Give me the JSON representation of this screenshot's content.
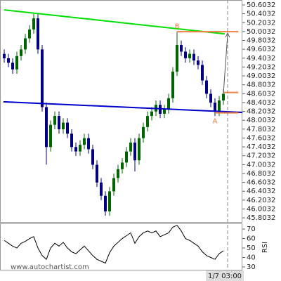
{
  "chart_data": {
    "type": "candlestick",
    "up_color": "#006400",
    "down_color": "#000080",
    "open": [
      49.5,
      49.4,
      49.3,
      49.15,
      49.45,
      49.6,
      49.85,
      50.05,
      50.3,
      49.6,
      48.3,
      47.4,
      47.9,
      48.1,
      47.8,
      47.95,
      47.7,
      47.4,
      47.3,
      47.45,
      47.6,
      47.35,
      47.0,
      46.6,
      46.3,
      45.95,
      46.4,
      46.7,
      46.9,
      47.05,
      47.3,
      47.5,
      47.1,
      47.6,
      47.85,
      48.1,
      48.2,
      48.35,
      48.15,
      48.25,
      48.5,
      49.1,
      49.7,
      49.55,
      49.4,
      49.5,
      49.35,
      49.25,
      48.9,
      48.6,
      48.4,
      48.2,
      48.45
    ],
    "high": [
      49.6,
      49.5,
      49.4,
      49.55,
      49.7,
      49.95,
      50.15,
      50.4,
      50.4,
      49.7,
      48.4,
      48.0,
      48.2,
      48.2,
      48.05,
      48.05,
      47.8,
      47.5,
      47.55,
      47.7,
      47.7,
      47.45,
      47.1,
      46.7,
      46.4,
      46.5,
      46.8,
      47.0,
      47.15,
      47.4,
      47.6,
      47.6,
      47.7,
      47.95,
      48.2,
      48.3,
      48.45,
      48.45,
      48.35,
      48.6,
      49.2,
      50.0,
      49.8,
      49.65,
      49.6,
      49.6,
      49.45,
      49.35,
      49.0,
      48.7,
      48.5,
      48.55,
      48.7
    ],
    "low": [
      49.3,
      49.2,
      49.05,
      49.05,
      49.35,
      49.5,
      49.75,
      49.95,
      49.5,
      48.2,
      47.0,
      47.3,
      47.8,
      47.7,
      47.7,
      47.6,
      47.3,
      47.2,
      47.2,
      47.35,
      47.25,
      46.9,
      46.5,
      46.2,
      45.85,
      45.85,
      46.3,
      46.6,
      46.8,
      46.95,
      47.2,
      46.85,
      47.0,
      47.5,
      47.75,
      48.0,
      48.1,
      48.05,
      48.05,
      48.15,
      48.4,
      49.0,
      49.45,
      49.3,
      49.3,
      49.25,
      49.15,
      48.8,
      48.5,
      48.3,
      48.1,
      48.1,
      48.35
    ],
    "close": [
      49.4,
      49.3,
      49.15,
      49.45,
      49.6,
      49.85,
      50.05,
      50.3,
      49.6,
      48.3,
      47.4,
      47.9,
      48.1,
      47.8,
      47.95,
      47.7,
      47.4,
      47.3,
      47.45,
      47.6,
      47.35,
      47.0,
      46.6,
      46.3,
      45.95,
      46.4,
      46.7,
      46.9,
      47.05,
      47.3,
      47.5,
      47.1,
      47.6,
      47.85,
      48.1,
      48.2,
      48.35,
      48.15,
      48.25,
      48.5,
      49.1,
      49.7,
      49.55,
      49.4,
      49.5,
      49.35,
      49.25,
      48.9,
      48.6,
      48.4,
      48.2,
      48.45,
      48.6
    ],
    "ylim": [
      45.71,
      50.714
    ],
    "yticks": [
      50.6032,
      50.4032,
      50.2032,
      50.0032,
      49.8032,
      49.6032,
      49.4032,
      49.2032,
      49.0032,
      48.8032,
      48.6032,
      48.4032,
      48.2032,
      48.0032,
      47.8032,
      47.6032,
      47.4032,
      47.2032,
      47.0032,
      46.8032,
      46.6032,
      46.4032,
      46.2032,
      46.0032,
      45.8032
    ],
    "trendlines": [
      {
        "color": "#00e000",
        "x": [
          0,
          52.3
        ],
        "y": [
          50.49,
          49.95
        ]
      },
      {
        "color": "#0000cc",
        "x": [
          -0.2,
          56.5
        ],
        "y": [
          48.42,
          48.18
        ]
      }
    ],
    "levels": [
      {
        "color": "#f08040",
        "x": [
          41,
          55.5
        ],
        "value": 50.0
      },
      {
        "color": "#f08040",
        "x": [
          52,
          55.5
        ],
        "value": 48.63
      },
      {
        "color": "#f08040",
        "x": [
          50,
          55.5
        ],
        "value": 48.17
      }
    ],
    "annotations": [
      {
        "text": "B",
        "x": 41,
        "y": 50.12
      },
      {
        "text": "A",
        "x": 50,
        "y": 47.98
      }
    ],
    "time_marker": {
      "x": 53,
      "label": "1/7 03:00"
    },
    "rsi": {
      "label": "RSI",
      "color": "#000000",
      "values": [
        58,
        55,
        52,
        50,
        55,
        57,
        60,
        62,
        50,
        42,
        38,
        50,
        55,
        52,
        56,
        50,
        46,
        44,
        48,
        52,
        47,
        42,
        38,
        36,
        34,
        45,
        52,
        56,
        60,
        63,
        66,
        55,
        62,
        66,
        68,
        66,
        68,
        62,
        64,
        66,
        72,
        74,
        68,
        60,
        58,
        55,
        52,
        46,
        42,
        40,
        38,
        44,
        47
      ],
      "ylim": [
        27,
        76
      ],
      "yticks": [
        70,
        60,
        50,
        40,
        30
      ]
    },
    "watermark": "www.autochartist.com"
  }
}
